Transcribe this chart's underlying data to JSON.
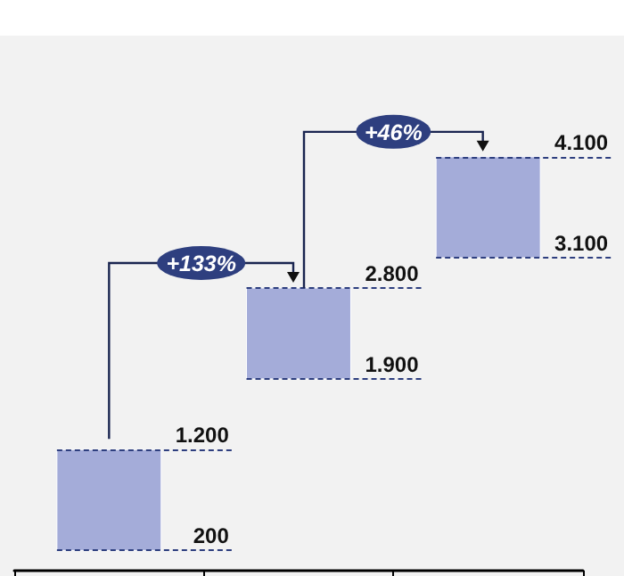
{
  "chart_data": {
    "type": "bar",
    "categories": [
      null,
      null,
      null
    ],
    "values": [
      1000,
      900,
      1000
    ],
    "base": [
      200,
      1900,
      3100
    ],
    "color": "#a4acd9",
    "ylim": [
      0,
      5300
    ],
    "tick_labels": false,
    "ref_lines": [
      {
        "axis": "y",
        "value": 200,
        "label": "200",
        "line_style": "dashed",
        "color": "#2e3f7f"
      },
      {
        "axis": "y",
        "value": 1200,
        "label": "1.200",
        "line_style": "dashed",
        "color": "#2e3f7f"
      },
      {
        "axis": "y",
        "value": 1900,
        "label": "1.900",
        "line_style": "dashed",
        "color": "#2e3f7f"
      },
      {
        "axis": "y",
        "value": 2800,
        "label": "2.800",
        "line_style": "dashed",
        "color": "#2e3f7f"
      },
      {
        "axis": "y",
        "value": 3100,
        "label": "3.100",
        "line_style": "dashed",
        "color": "#2e3f7f"
      },
      {
        "axis": "y",
        "value": 4100,
        "label": "4.100",
        "line_style": "dashed",
        "color": "#2e3f7f"
      }
    ],
    "annotations": [
      "+133%",
      "+46%"
    ]
  }
}
